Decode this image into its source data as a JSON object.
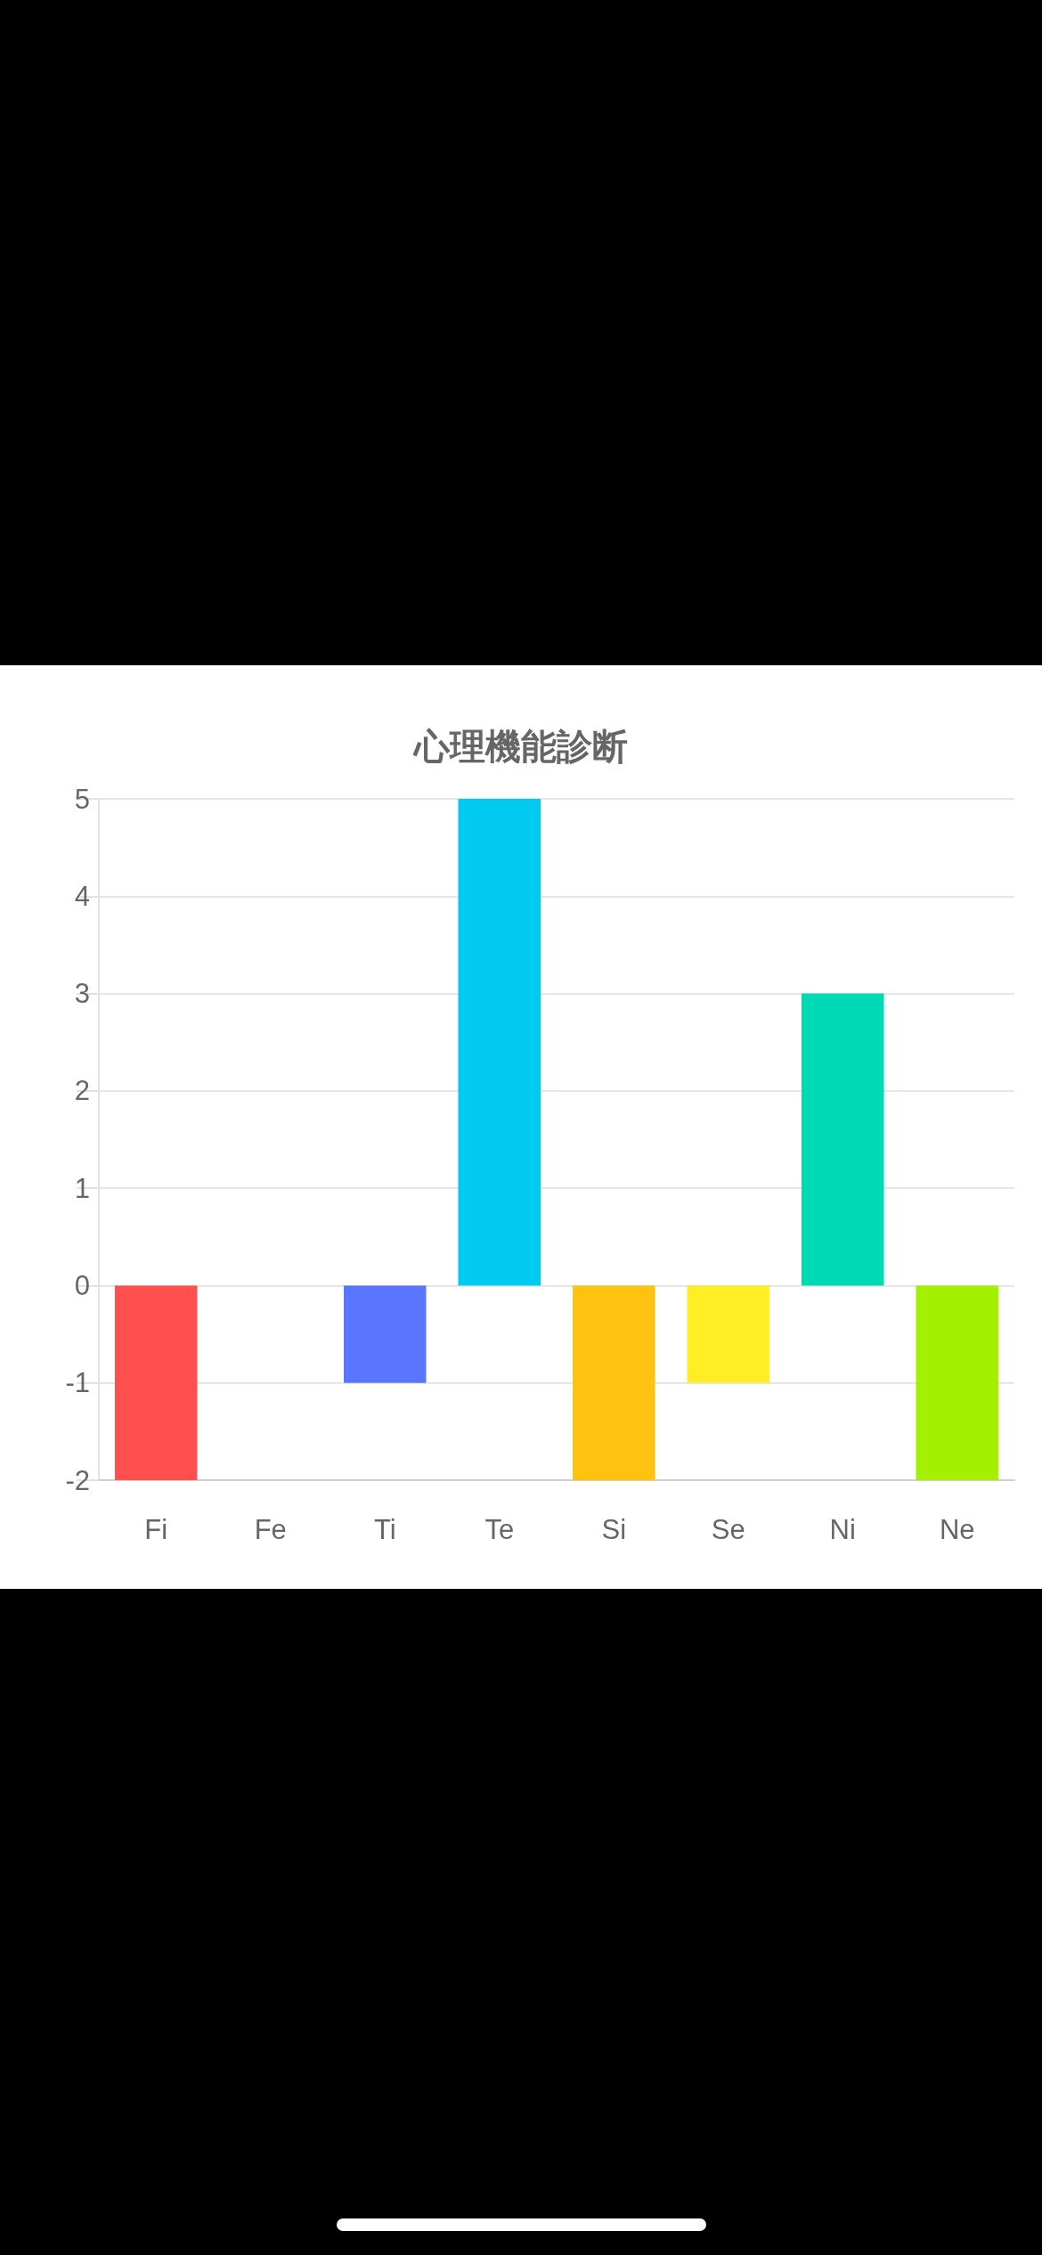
{
  "chart_data": {
    "type": "bar",
    "title": "心理機能診断",
    "categories": [
      "Fi",
      "Fe",
      "Ti",
      "Te",
      "Si",
      "Se",
      "Ni",
      "Ne"
    ],
    "values": [
      -2,
      0,
      -1,
      5,
      -2,
      -1,
      3,
      -2
    ],
    "colors": [
      "#ff4f4f",
      null,
      "#5a75ff",
      "#00caf0",
      "#ffc30f",
      "#ffee24",
      "#00d9b5",
      "#a3f000"
    ],
    "ylim": [
      -2,
      5
    ],
    "yticks": [
      -2,
      -1,
      0,
      1,
      2,
      3,
      4,
      5
    ],
    "grid": "y"
  }
}
